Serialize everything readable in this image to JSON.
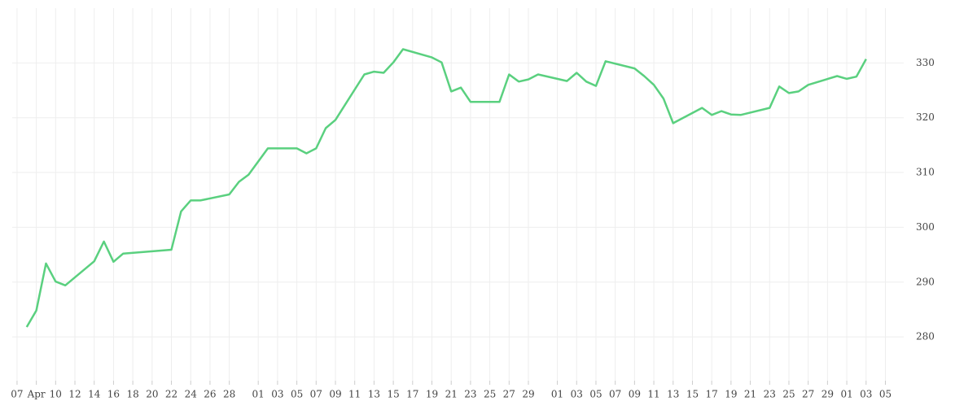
{
  "chart_data": {
    "type": "line",
    "color": "#5ad07f",
    "grid": true,
    "xlim": [
      -0.5,
      91.9
    ],
    "ylim": [
      272,
      340
    ],
    "yticks": [
      280,
      290,
      300,
      310,
      320,
      330
    ],
    "xticks": [
      {
        "value": 0,
        "label": "07"
      },
      {
        "value": 2,
        "label": "Apr"
      },
      {
        "value": 4,
        "label": "10"
      },
      {
        "value": 6,
        "label": "12"
      },
      {
        "value": 8,
        "label": "14"
      },
      {
        "value": 10,
        "label": "16"
      },
      {
        "value": 12,
        "label": "18"
      },
      {
        "value": 14,
        "label": "20"
      },
      {
        "value": 16,
        "label": "22"
      },
      {
        "value": 18,
        "label": "24"
      },
      {
        "value": 20,
        "label": "26"
      },
      {
        "value": 22,
        "label": "28"
      },
      {
        "value": 25,
        "label": "01"
      },
      {
        "value": 27,
        "label": "03"
      },
      {
        "value": 29,
        "label": "05"
      },
      {
        "value": 31,
        "label": "07"
      },
      {
        "value": 33,
        "label": "09"
      },
      {
        "value": 35,
        "label": "11"
      },
      {
        "value": 37,
        "label": "13"
      },
      {
        "value": 39,
        "label": "15"
      },
      {
        "value": 41,
        "label": "17"
      },
      {
        "value": 43,
        "label": "19"
      },
      {
        "value": 45,
        "label": "21"
      },
      {
        "value": 47,
        "label": "23"
      },
      {
        "value": 49,
        "label": "25"
      },
      {
        "value": 51,
        "label": "27"
      },
      {
        "value": 53,
        "label": "29"
      },
      {
        "value": 56,
        "label": "01"
      },
      {
        "value": 58,
        "label": "03"
      },
      {
        "value": 60,
        "label": "05"
      },
      {
        "value": 62,
        "label": "07"
      },
      {
        "value": 64,
        "label": "09"
      },
      {
        "value": 66,
        "label": "11"
      },
      {
        "value": 68,
        "label": "13"
      },
      {
        "value": 70,
        "label": "15"
      },
      {
        "value": 72,
        "label": "17"
      },
      {
        "value": 74,
        "label": "19"
      },
      {
        "value": 76,
        "label": "21"
      },
      {
        "value": 78,
        "label": "23"
      },
      {
        "value": 80,
        "label": "25"
      },
      {
        "value": 82,
        "label": "27"
      },
      {
        "value": 84,
        "label": "29"
      },
      {
        "value": 86,
        "label": "01"
      },
      {
        "value": 88,
        "label": "03"
      },
      {
        "value": 90,
        "label": "05"
      }
    ],
    "x": [
      1,
      2,
      3,
      4,
      5,
      8,
      9,
      10,
      11,
      16,
      17,
      18,
      19,
      22,
      23,
      24,
      26,
      29,
      30,
      31,
      32,
      33,
      36,
      37,
      38,
      39,
      40,
      43,
      44,
      45,
      46,
      47,
      50,
      51,
      52,
      53,
      54,
      57,
      58,
      59,
      60,
      61,
      64,
      65,
      66,
      67,
      68,
      71,
      72,
      73,
      74,
      75,
      78,
      79,
      80,
      81,
      82,
      85,
      86,
      87,
      88
    ],
    "values": [
      281.8,
      284.8,
      293.4,
      290.1,
      289.4,
      293.8,
      297.4,
      293.7,
      295.2,
      295.9,
      302.9,
      304.9,
      304.9,
      306.0,
      308.3,
      309.6,
      314.4,
      314.4,
      313.5,
      314.4,
      318.1,
      319.6,
      327.9,
      328.4,
      328.2,
      330.1,
      332.5,
      331.0,
      330.1,
      324.8,
      325.5,
      322.9,
      322.9,
      327.9,
      326.6,
      327.0,
      327.9,
      326.7,
      328.2,
      326.6,
      325.8,
      330.3,
      329.0,
      327.6,
      326.0,
      323.5,
      319.0,
      321.8,
      320.5,
      321.2,
      320.6,
      320.5,
      321.8,
      325.7,
      324.5,
      324.8,
      326.0,
      327.6,
      327.1,
      327.5,
      330.7
    ]
  }
}
